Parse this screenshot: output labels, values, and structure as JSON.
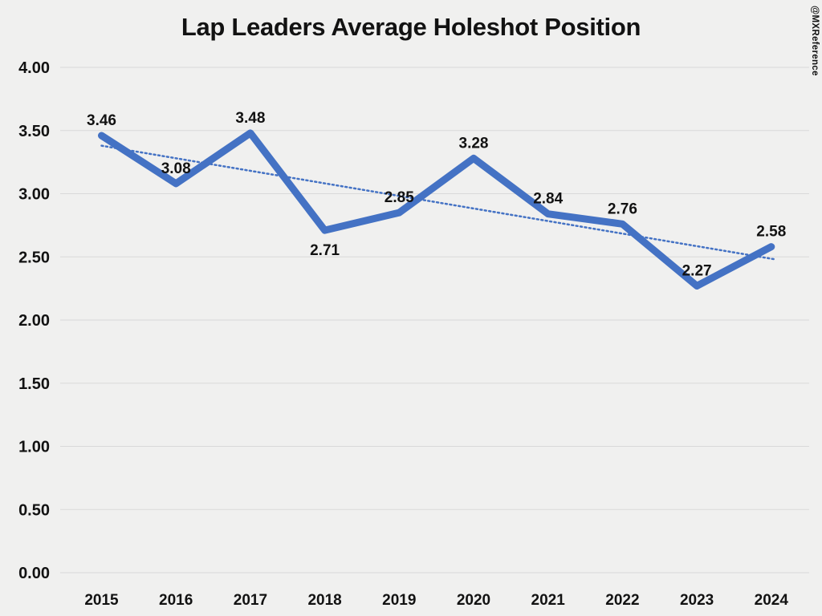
{
  "watermark": "@MXReference",
  "chart_data": {
    "type": "line",
    "title": "Lap Leaders Average Holeshot Position",
    "xlabel": "",
    "ylabel": "",
    "categories": [
      "2015",
      "2016",
      "2017",
      "2018",
      "2019",
      "2020",
      "2021",
      "2022",
      "2023",
      "2024"
    ],
    "series": [
      {
        "name": "Lap Leaders Average Holeshot Position",
        "values": [
          3.46,
          3.08,
          3.48,
          2.71,
          2.85,
          3.28,
          2.84,
          2.76,
          2.27,
          2.58
        ]
      }
    ],
    "data_labels": [
      "3.46",
      "3.08",
      "3.48",
      "2.71",
      "2.85",
      "3.28",
      "2.84",
      "2.76",
      "2.27",
      "2.58"
    ],
    "label_positions": [
      "above",
      "above",
      "above",
      "below",
      "above",
      "above",
      "above",
      "above",
      "above",
      "above"
    ],
    "yticks": [
      "4.00",
      "3.50",
      "3.00",
      "2.50",
      "2.00",
      "1.50",
      "1.00",
      "0.50",
      "0.00"
    ],
    "ytick_values": [
      4.0,
      3.5,
      3.0,
      2.5,
      2.0,
      1.5,
      1.0,
      0.5,
      0.0
    ],
    "ylim": [
      0,
      4
    ],
    "grid": true,
    "legend": "none",
    "trendline": {
      "type": "linear",
      "style": "dotted",
      "start_value": 3.38,
      "end_value": 2.48
    },
    "colors": {
      "line": "#4472C4",
      "trendline": "#4472C4",
      "grid": "#d9d9d9",
      "text": "#121212",
      "background": "#f0f0ef"
    }
  }
}
